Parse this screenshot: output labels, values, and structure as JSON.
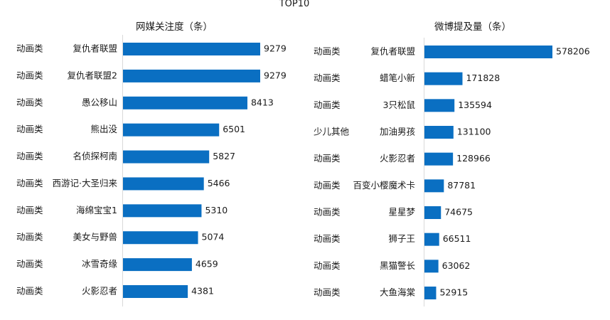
{
  "title": "TOP10",
  "colors": {
    "bar": "#0a6fc2",
    "axis": "#d9d9d9",
    "text": "#1a1a1a"
  },
  "chart_data": [
    {
      "type": "bar",
      "orientation": "horizontal",
      "title": "网媒关注度（条）",
      "groups": [
        "动画类",
        "动画类",
        "动画类",
        "动画类",
        "动画类",
        "动画类",
        "动画类",
        "动画类",
        "动画类",
        "动画类"
      ],
      "categories": [
        "复仇者联盟",
        "复仇者联盟2",
        "愚公移山",
        "熊出没",
        "名侦探柯南",
        "西游记·大圣归来",
        "海绵宝宝1",
        "美女与野兽",
        "冰雪奇缘",
        "火影忍者"
      ],
      "values": [
        9279,
        9279,
        8413,
        6501,
        5827,
        5466,
        5310,
        5074,
        4659,
        4381
      ],
      "xlim": [
        0,
        9279
      ],
      "grid": false,
      "legend": "none"
    },
    {
      "type": "bar",
      "orientation": "horizontal",
      "title": "微博提及量（条）",
      "groups": [
        "动画类",
        "动画类",
        "动画类",
        "少儿其他",
        "动画类",
        "动画类",
        "动画类",
        "动画类",
        "动画类",
        "动画类"
      ],
      "categories": [
        "复仇者联盟",
        "蜡笔小新",
        "3只松鼠",
        "加油男孩",
        "火影忍者",
        "百变小樱魔术卡",
        "星星梦",
        "狮子王",
        "黑猫警长",
        "大鱼海棠"
      ],
      "values": [
        578206,
        171828,
        135594,
        131100,
        128966,
        87781,
        74675,
        66511,
        63062,
        52915
      ],
      "xlim": [
        0,
        578206
      ],
      "grid": false,
      "legend": "none"
    }
  ]
}
